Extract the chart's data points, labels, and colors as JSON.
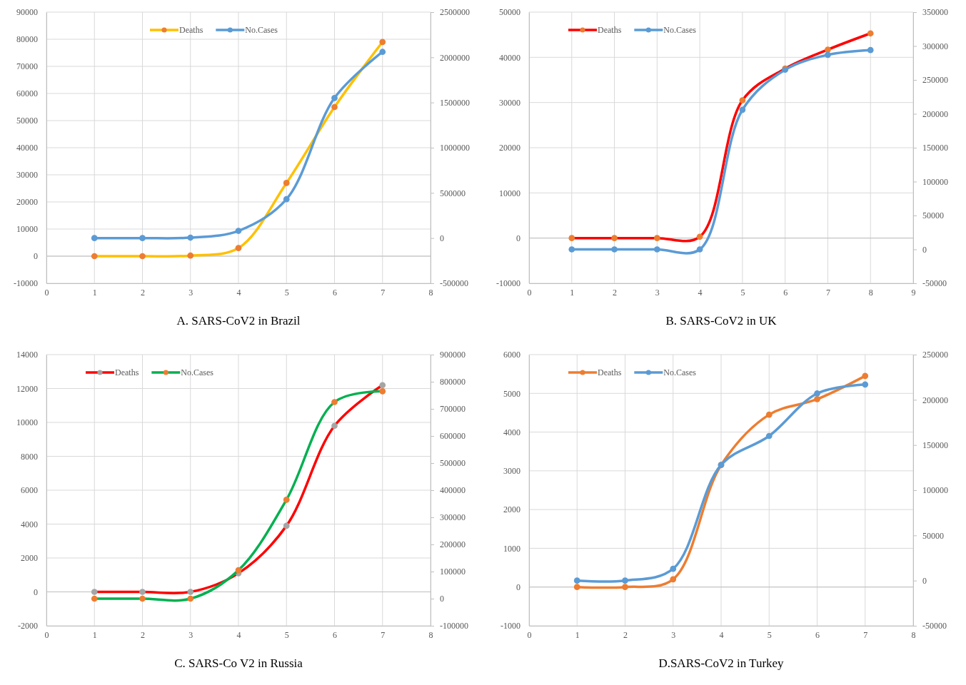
{
  "chart_data": [
    {
      "type": "line",
      "title": "A. SARS-CoV2 in Brazil",
      "x": [
        1,
        2,
        3,
        4,
        5,
        6,
        7
      ],
      "xlim": [
        0,
        8
      ],
      "xticks": [
        0,
        1,
        2,
        3,
        4,
        5,
        6,
        7,
        8
      ],
      "ylim": [
        -10000,
        90000
      ],
      "yticks": [
        -10000,
        0,
        10000,
        20000,
        30000,
        40000,
        50000,
        60000,
        70000,
        80000,
        90000
      ],
      "y2lim": [
        -500000,
        2500000
      ],
      "y2ticks": [
        -500000,
        0,
        500000,
        1000000,
        1500000,
        2000000,
        2500000
      ],
      "grid": true,
      "legend": "top",
      "marker": "circle",
      "line_style": "solid",
      "series": [
        {
          "name": "Deaths",
          "color": "#ffc000",
          "colors": [
            "#ed7d31",
            "#ed7d31",
            "#ed7d31",
            "#ed7d31",
            "#ed7d31",
            "#ed7d31",
            "#ed7d31"
          ],
          "values": [
            0,
            0,
            200,
            3000,
            27000,
            55000,
            79000
          ]
        },
        {
          "name": "No.Cases",
          "color": "#5b9bd5",
          "axis": "y2",
          "values": [
            0,
            0,
            5000,
            80000,
            430000,
            1550000,
            2060000
          ]
        }
      ]
    },
    {
      "type": "line",
      "title": "B. SARS-CoV2 in UK",
      "x": [
        1,
        2,
        3,
        4,
        5,
        6,
        7,
        8
      ],
      "xlim": [
        0,
        9
      ],
      "xticks": [
        0,
        1,
        2,
        3,
        4,
        5,
        6,
        7,
        8,
        9
      ],
      "ylim": [
        -10000,
        50000
      ],
      "yticks": [
        -10000,
        0,
        10000,
        20000,
        30000,
        40000,
        50000
      ],
      "y2lim": [
        -50000,
        350000
      ],
      "y2ticks": [
        -50000,
        0,
        50000,
        100000,
        150000,
        200000,
        250000,
        300000,
        350000
      ],
      "grid": true,
      "legend": "top left",
      "marker": "circle",
      "line_style": "solid",
      "series": [
        {
          "name": "Deaths",
          "color": "#ff0000",
          "colors": [
            "#ed7d31",
            "#ed7d31",
            "#ed7d31",
            "#ed7d31",
            "#ed7d31",
            "#ed7d31",
            "#ed7d31",
            "#ed7d31"
          ],
          "values": [
            0,
            0,
            0,
            300,
            30500,
            37500,
            41700,
            45300
          ]
        },
        {
          "name": "No.Cases",
          "color": "#5b9bd5",
          "axis": "y2",
          "values": [
            0,
            0,
            0,
            0,
            206000,
            265000,
            287000,
            294000
          ]
        }
      ]
    },
    {
      "type": "line",
      "title": "C. SARS-Co V2 in Russia",
      "x": [
        1,
        2,
        3,
        4,
        5,
        6,
        7
      ],
      "xlim": [
        0,
        8
      ],
      "xticks": [
        0,
        1,
        2,
        3,
        4,
        5,
        6,
        7,
        8
      ],
      "ylim": [
        -2000,
        14000
      ],
      "yticks": [
        -2000,
        0,
        2000,
        4000,
        6000,
        8000,
        10000,
        12000,
        14000
      ],
      "y2lim": [
        -100000,
        900000
      ],
      "y2ticks": [
        -100000,
        0,
        100000,
        200000,
        300000,
        400000,
        500000,
        600000,
        700000,
        800000,
        900000
      ],
      "grid": true,
      "legend": "top left",
      "marker": "circle",
      "line_style": "solid",
      "series": [
        {
          "name": "Deaths",
          "color": "#ff0000",
          "colors": [
            "#a5a5a5",
            "#a5a5a5",
            "#a5a5a5",
            "#a5a5a5",
            "#a5a5a5",
            "#a5a5a5",
            "#a5a5a5"
          ],
          "values": [
            0,
            0,
            0,
            1100,
            3900,
            9800,
            12200
          ]
        },
        {
          "name": "No.Cases",
          "color": "#00b050",
          "axis": "y2",
          "colors": [
            "#ed7d31",
            "#ed7d31",
            "#ed7d31",
            "#ed7d31",
            "#ed7d31",
            "#ed7d31",
            "#ed7d31"
          ],
          "values": [
            0,
            0,
            0,
            105000,
            365000,
            725000,
            765000
          ]
        }
      ]
    },
    {
      "type": "line",
      "title": "D.SARS-CoV2 in Turkey",
      "x": [
        1,
        2,
        3,
        4,
        5,
        6,
        7
      ],
      "xlim": [
        0,
        8
      ],
      "xticks": [
        0,
        1,
        2,
        3,
        4,
        5,
        6,
        7,
        8
      ],
      "ylim": [
        -1000,
        6000
      ],
      "yticks": [
        -1000,
        0,
        1000,
        2000,
        3000,
        4000,
        5000,
        6000
      ],
      "y2lim": [
        -50000,
        250000
      ],
      "y2ticks": [
        -50000,
        0,
        50000,
        100000,
        150000,
        200000,
        250000
      ],
      "grid": true,
      "legend": "top left",
      "marker": "circle",
      "line_style": "solid",
      "series": [
        {
          "name": "Deaths",
          "color": "#ed7d31",
          "values": [
            0,
            0,
            200,
            3150,
            4450,
            4850,
            5450
          ]
        },
        {
          "name": "No.Cases",
          "color": "#5b9bd5",
          "axis": "y2",
          "values": [
            0,
            0,
            13000,
            128000,
            160000,
            207000,
            217000
          ]
        }
      ]
    }
  ]
}
